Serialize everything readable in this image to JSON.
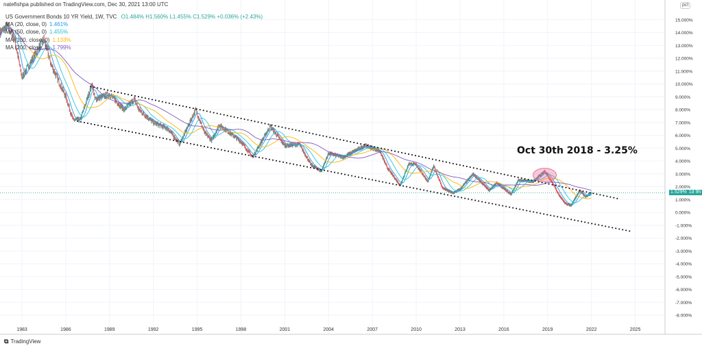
{
  "header": {
    "published": "natefishpa published on TradingView.com, Dec 30, 2021 13:00 UTC"
  },
  "symbol": {
    "name": "US Government Bonds 10 YR Yield, 1W, TVC",
    "open": "O1.484%",
    "high": "H1.560%",
    "low": "L1.455%",
    "close": "C1.529%",
    "change": "+0.036% (+2.43%)"
  },
  "indicators": [
    {
      "label": "MA (20, close, 0)",
      "value": "1.461%",
      "color": "#2196f3"
    },
    {
      "label": "MA (50, close, 0)",
      "value": "1.455%",
      "color": "#26c6da"
    },
    {
      "label": "MA (100, close, 0)",
      "value": "1.133%",
      "color": "#ffb300"
    },
    {
      "label": "MA (200, close, 0)",
      "value": "1.799%",
      "color": "#7e57c2"
    }
  ],
  "annotation": "Oct 30th 2018 - 3.25%",
  "price_label": {
    "value": "1.529%",
    "countdown": "1d 9h"
  },
  "axis_unit": "pct",
  "footer": "TradingView",
  "colors": {
    "up": "#26a69a",
    "down": "#ef5350",
    "price": "#26a69a"
  },
  "chart_data": {
    "type": "line",
    "title": "US Government Bonds 10 YR Yield, 1W",
    "xlabel": "",
    "ylabel": "pct",
    "xlim": [
      1981.5,
      2026.5
    ],
    "ylim": [
      -8.5,
      15.5
    ],
    "x_ticks": [
      "1983",
      "1986",
      "1989",
      "1992",
      "1995",
      "1998",
      "2001",
      "2004",
      "2007",
      "2010",
      "2013",
      "2016",
      "2019",
      "2022",
      "2025"
    ],
    "y_ticks": [
      "15.000%",
      "14.000%",
      "13.000%",
      "12.000%",
      "11.000%",
      "10.000%",
      "9.000%",
      "8.000%",
      "7.000%",
      "6.000%",
      "5.000%",
      "4.000%",
      "3.000%",
      "2.000%",
      "1.000%",
      "0.000%",
      "-1.000%",
      "-2.000%",
      "-3.000%",
      "-4.000%",
      "-5.000%",
      "-6.000%",
      "-7.000%",
      "-8.000%"
    ],
    "grid": true,
    "series": {
      "name": "Yield",
      "x": [
        1981.5,
        1982.0,
        1982.5,
        1983.0,
        1983.5,
        1984.5,
        1985.0,
        1986.0,
        1986.5,
        1987.0,
        1987.8,
        1988.0,
        1989.0,
        1990.0,
        1990.7,
        1991.0,
        1992.0,
        1993.0,
        1993.8,
        1994.9,
        1995.5,
        1996.0,
        1996.5,
        1997.0,
        1998.0,
        1998.8,
        2000.0,
        2001.0,
        2002.0,
        2002.8,
        2003.5,
        2004.0,
        2005.0,
        2006.5,
        2007.5,
        2008.0,
        2008.9,
        2009.5,
        2010.0,
        2010.8,
        2011.2,
        2011.8,
        2012.5,
        2013.0,
        2013.9,
        2015.0,
        2015.5,
        2016.5,
        2017.0,
        2018.0,
        2018.8,
        2019.5,
        2019.7,
        2020.2,
        2020.6,
        2021.2,
        2021.6,
        2022.0
      ],
      "y": [
        14,
        14.5,
        13.5,
        10.5,
        11.5,
        13.5,
        11.5,
        9,
        7.2,
        7.2,
        10,
        8.8,
        9.2,
        8,
        8.8,
        8,
        7,
        6.5,
        5.3,
        8,
        6.2,
        5.6,
        6.8,
        6.4,
        5.5,
        4.3,
        6.7,
        5.2,
        5.3,
        3.7,
        3.2,
        4.6,
        4.3,
        5.2,
        4.8,
        3.5,
        2.1,
        3.8,
        3.7,
        2.4,
        3.6,
        1.9,
        1.5,
        1.8,
        3.0,
        1.7,
        2.3,
        1.4,
        2.5,
        2.4,
        3.2,
        2.0,
        1.5,
        0.7,
        0.55,
        1.7,
        1.2,
        1.529
      ]
    },
    "moving_averages": [
      20,
      50,
      100,
      200
    ],
    "trendlines": [
      {
        "name": "upper",
        "from": [
          1987.7,
          9.8
        ],
        "to": [
          2023.9,
          1.05
        ]
      },
      {
        "name": "lower",
        "from": [
          1986.8,
          7.1
        ],
        "to": [
          2024.8,
          -1.5
        ]
      }
    ],
    "highlight": {
      "x": 2018.8,
      "y": 2.9
    }
  }
}
